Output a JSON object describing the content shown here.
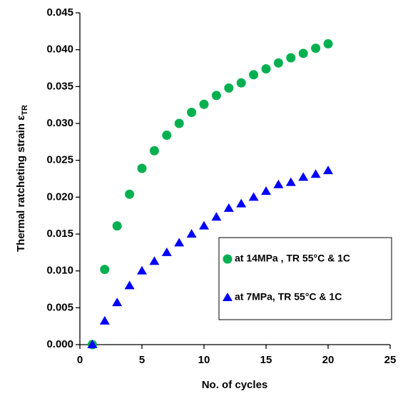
{
  "chart_data": {
    "type": "scatter",
    "xlabel": "No. of cycles",
    "ylabel": "Thermal ratcheting strain ε",
    "ylabel_sub": "TR",
    "x": [
      1,
      2,
      3,
      4,
      5,
      6,
      7,
      8,
      9,
      10,
      11,
      12,
      13,
      14,
      15,
      16,
      17,
      18,
      19,
      20
    ],
    "series": [
      {
        "name": "at 14MPa , TR 55°C & 1C",
        "color": "#00b050",
        "marker": "circle",
        "values": [
          0.0,
          0.0102,
          0.0161,
          0.0204,
          0.0239,
          0.0263,
          0.0284,
          0.03,
          0.0315,
          0.0326,
          0.0338,
          0.0348,
          0.0355,
          0.0366,
          0.0374,
          0.0382,
          0.0389,
          0.0395,
          0.0402,
          0.0408
        ]
      },
      {
        "name": "at 7MPa, TR 55°C & 1C",
        "color": "#0000ff",
        "marker": "triangle",
        "values": [
          0.0,
          0.0032,
          0.0057,
          0.008,
          0.01,
          0.0113,
          0.0125,
          0.0138,
          0.015,
          0.0161,
          0.0173,
          0.0185,
          0.0191,
          0.02,
          0.0208,
          0.0217,
          0.022,
          0.0227,
          0.0231,
          0.0236
        ]
      }
    ],
    "xlim": [
      0,
      25
    ],
    "xticks": [
      0,
      5,
      10,
      15,
      20,
      25
    ],
    "ylim": [
      0,
      0.045
    ],
    "yticks": [
      {
        "value": 0,
        "label": "0.000"
      },
      0.005,
      {
        "value": 0.01,
        "label": "0.010"
      },
      0.015,
      {
        "value": 0.02,
        "label": "0.020"
      },
      0.025,
      {
        "value": 0.03,
        "label": "0.030"
      },
      0.035,
      {
        "value": 0.04,
        "label": "0.040"
      },
      0.045
    ],
    "legend": "lower right",
    "grid": false
  }
}
